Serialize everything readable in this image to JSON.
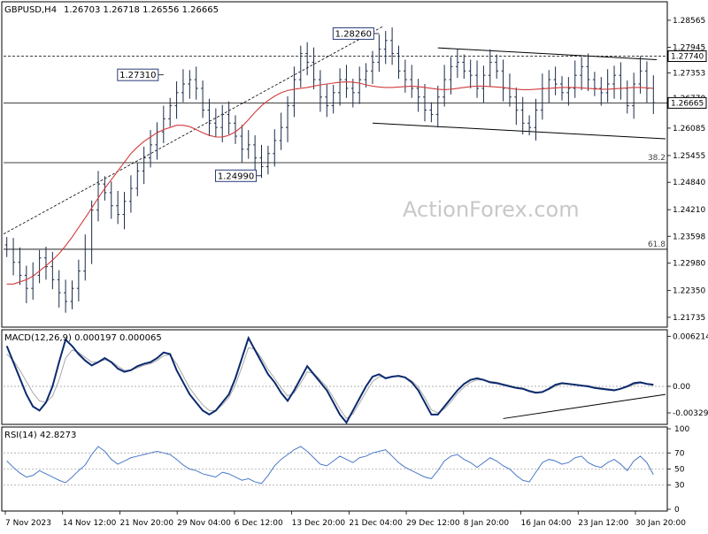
{
  "header": {
    "symbol": "GBPUSD,H4",
    "ohlc": "1.26703 1.26718 1.26556 1.26665"
  },
  "watermark": "ActionForex.com",
  "colors": {
    "bar": "#1a2b4a",
    "ma": "#d23c3c",
    "macd": "#0b2a6e",
    "signal": "#a8a8a8",
    "rsi": "#4a78c8",
    "grid": "#c8c8c8",
    "line": "#000000"
  },
  "chart_data": [
    {
      "type": "ohlc",
      "title": "GBPUSD,H4",
      "ylim": [
        1.2155,
        1.2895
      ],
      "y_ticks": [
        "1.28565",
        "1.27945",
        "1.27353",
        "1.26770",
        "1.26085",
        "1.25455",
        "1.24840",
        "1.24210",
        "1.23598",
        "1.22980",
        "1.22350",
        "1.21735"
      ],
      "x_ticks": [
        "7 Nov 2023",
        "14 Nov 12:00",
        "21 Nov 20:00",
        "29 Nov 04:00",
        "6 Dec 12:00",
        "13 Dec 20:00",
        "21 Dec 04:00",
        "29 Dec 12:00",
        "8 Jan 20:00",
        "16 Jan 04:00",
        "23 Jan 12:00",
        "30 Jan 20:00"
      ],
      "closes": [
        1.233,
        1.23,
        1.227,
        1.224,
        1.227,
        1.231,
        1.229,
        1.226,
        1.223,
        1.221,
        1.224,
        1.228,
        1.233,
        1.242,
        1.248,
        1.246,
        1.243,
        1.241,
        1.244,
        1.247,
        1.251,
        1.254,
        1.257,
        1.26,
        1.263,
        1.266,
        1.269,
        1.271,
        1.272,
        1.27,
        1.265,
        1.262,
        1.261,
        1.264,
        1.262,
        1.259,
        1.256,
        1.257,
        1.254,
        1.252,
        1.255,
        1.258,
        1.261,
        1.266,
        1.272,
        1.278,
        1.276,
        1.272,
        1.268,
        1.266,
        1.269,
        1.272,
        1.27,
        1.269,
        1.272,
        1.274,
        1.276,
        1.279,
        1.281,
        1.278,
        1.274,
        1.272,
        1.27,
        1.268,
        1.265,
        1.264,
        1.268,
        1.272,
        1.275,
        1.276,
        1.274,
        1.273,
        1.27,
        1.273,
        1.276,
        1.274,
        1.27,
        1.268,
        1.265,
        1.262,
        1.261,
        1.265,
        1.27,
        1.272,
        1.271,
        1.269,
        1.27,
        1.273,
        1.275,
        1.272,
        1.27,
        1.269,
        1.271,
        1.273,
        1.27,
        1.266,
        1.271,
        1.274,
        1.27,
        1.2667
      ],
      "ma_values": [
        1.225,
        1.225,
        1.2255,
        1.226,
        1.2268,
        1.228,
        1.2292,
        1.2305,
        1.232,
        1.2338,
        1.2358,
        1.238,
        1.2402,
        1.2425,
        1.2448,
        1.247,
        1.249,
        1.251,
        1.253,
        1.255,
        1.2565,
        1.2578,
        1.2588,
        1.2598,
        1.2605,
        1.261,
        1.2615,
        1.2615,
        1.2612,
        1.2605,
        1.2598,
        1.2592,
        1.2588,
        1.2588,
        1.2592,
        1.26,
        1.2612,
        1.2628,
        1.2645,
        1.266,
        1.2672,
        1.2682,
        1.269,
        1.2695,
        1.2698,
        1.27,
        1.2702,
        1.2705,
        1.2708,
        1.271,
        1.2712,
        1.2714,
        1.2715,
        1.2714,
        1.2712,
        1.2708,
        1.2705,
        1.2703,
        1.2702,
        1.2702,
        1.2703,
        1.2704,
        1.2705,
        1.2704,
        1.2702,
        1.27,
        1.2698,
        1.2697,
        1.2698,
        1.27,
        1.2702,
        1.2704,
        1.2705,
        1.2705,
        1.2704,
        1.2703,
        1.2702,
        1.27,
        1.2698,
        1.2697,
        1.2697,
        1.2698,
        1.2699,
        1.27,
        1.2701,
        1.2702,
        1.2702,
        1.2702,
        1.2701,
        1.27,
        1.2699,
        1.2698,
        1.2698,
        1.2699,
        1.27,
        1.2701,
        1.2702,
        1.2702,
        1.2701,
        1.27
      ],
      "levels": [
        {
          "value": 1.2774,
          "label": "1.27740",
          "style": "dashed"
        },
        {
          "value": 1.26665,
          "label": "1.26665",
          "style": "solid"
        },
        {
          "value": 1.2529,
          "label": "38.2",
          "style": "solid"
        },
        {
          "value": 1.233,
          "label": "61.8",
          "style": "solid"
        }
      ],
      "callouts": [
        {
          "label": "1.28260",
          "value": 1.2826,
          "index": 57
        },
        {
          "label": "1.27310",
          "value": 1.2731,
          "index": 24
        },
        {
          "label": "1.24990",
          "value": 1.2499,
          "index": 39
        }
      ]
    },
    {
      "type": "line",
      "title": "MACD(12,26,9) 0.000197 0.000065",
      "ylim": [
        -0.0045,
        0.0068
      ],
      "y_ticks": [
        "0.006214",
        "0.00",
        "-0.003292"
      ],
      "x_ticks": [
        "7 Nov 2023",
        "14 Nov 12:00",
        "21 Nov 20:00",
        "29 Nov 04:00",
        "6 Dec 12:00",
        "13 Dec 20:00",
        "21 Dec 04:00",
        "29 Dec 12:00",
        "8 Jan 20:00",
        "16 Jan 04:00",
        "23 Jan 12:00",
        "30 Jan 20:00"
      ],
      "series": [
        {
          "name": "",
          "values": [
            0.005,
            0.003,
            0.001,
            -0.001,
            -0.0025,
            -0.003,
            -0.002,
            0.0,
            0.003,
            0.0058,
            0.005,
            0.004,
            0.0032,
            0.0026,
            0.003,
            0.0035,
            0.003,
            0.0022,
            0.0018,
            0.002,
            0.0025,
            0.0028,
            0.003,
            0.0035,
            0.0042,
            0.004,
            0.002,
            0.0005,
            -0.001,
            -0.002,
            -0.003,
            -0.0035,
            -0.003,
            -0.002,
            -0.001,
            0.001,
            0.0035,
            0.006,
            0.0045,
            0.003,
            0.0015,
            0.0005,
            -0.0008,
            -0.0018,
            -0.0005,
            0.001,
            0.0025,
            0.0015,
            0.0005,
            -0.0005,
            -0.002,
            -0.0035,
            -0.0045,
            -0.003,
            -0.0015,
            0.0,
            0.0012,
            0.0015,
            0.001,
            0.0012,
            0.0013,
            0.0011,
            0.0005,
            -0.0005,
            -0.002,
            -0.0035,
            -0.0035,
            -0.0025,
            -0.0015,
            -0.0005,
            0.0003,
            0.0008,
            0.001,
            0.0008,
            0.0005,
            0.0004,
            0.0002,
            0.0,
            -0.0002,
            -0.0003,
            -0.0006,
            -0.0008,
            -0.0007,
            -0.0003,
            0.0002,
            0.0004,
            0.0003,
            0.0002,
            0.0001,
            0.0,
            -0.0002,
            -0.0003,
            -0.0004,
            -0.0005,
            -0.0003,
            0.0,
            0.0004,
            0.0005,
            0.0003,
            0.0002
          ]
        },
        {
          "name": "",
          "values": [
            0.004,
            0.0032,
            0.002,
            0.0006,
            -0.0008,
            -0.0018,
            -0.002,
            -0.0012,
            0.0008,
            0.0035,
            0.0045,
            0.0042,
            0.0036,
            0.003,
            0.003,
            0.0033,
            0.0031,
            0.0025,
            0.002,
            0.002,
            0.0023,
            0.0026,
            0.0028,
            0.0032,
            0.0038,
            0.0039,
            0.0028,
            0.0013,
            -0.0002,
            -0.0013,
            -0.0023,
            -0.003,
            -0.003,
            -0.0023,
            -0.0014,
            0.0002,
            0.0024,
            0.0048,
            0.0046,
            0.0035,
            0.0021,
            0.001,
            -0.0002,
            -0.0012,
            -0.0008,
            0.0004,
            0.0018,
            0.0016,
            0.0008,
            -0.0001,
            -0.0014,
            -0.0028,
            -0.004,
            -0.0034,
            -0.0021,
            -0.0007,
            0.0006,
            0.0012,
            0.0011,
            0.0012,
            0.0012,
            0.0011,
            0.0007,
            -0.0001,
            -0.0014,
            -0.0029,
            -0.0033,
            -0.0028,
            -0.0019,
            -0.0009,
            -0.0001,
            0.0005,
            0.0008,
            0.0008,
            0.0006,
            0.0005,
            0.0003,
            0.0001,
            -0.0001,
            -0.0002,
            -0.0005,
            -0.0007,
            -0.0007,
            -0.0004,
            0.0,
            0.0003,
            0.0003,
            0.0002,
            0.0001,
            0.0001,
            -0.0001,
            -0.0002,
            -0.0003,
            -0.0004,
            -0.0003,
            -0.0001,
            0.0002,
            0.0004,
            0.0003,
            0.0001
          ]
        }
      ]
    },
    {
      "type": "line",
      "title": "RSI(14) 42.8273",
      "ylim": [
        0,
        100
      ],
      "y_ticks": [
        "100",
        "70",
        "50",
        "30",
        "0"
      ],
      "x_ticks": [
        "7 Nov 2023",
        "14 Nov 12:00",
        "21 Nov 20:00",
        "29 Nov 04:00",
        "6 Dec 12:00",
        "13 Dec 20:00",
        "21 Dec 04:00",
        "29 Dec 12:00",
        "8 Jan 20:00",
        "16 Jan 04:00",
        "23 Jan 12:00",
        "30 Jan 20:00"
      ],
      "series": [
        {
          "name": "",
          "values": [
            60,
            52,
            45,
            40,
            42,
            48,
            44,
            40,
            36,
            33,
            40,
            48,
            55,
            68,
            78,
            72,
            62,
            56,
            60,
            64,
            66,
            68,
            70,
            72,
            70,
            68,
            62,
            55,
            50,
            48,
            44,
            42,
            40,
            46,
            44,
            40,
            36,
            38,
            34,
            32,
            42,
            54,
            62,
            68,
            74,
            78,
            72,
            64,
            56,
            54,
            60,
            66,
            62,
            58,
            64,
            66,
            70,
            72,
            74,
            66,
            58,
            52,
            48,
            44,
            40,
            38,
            48,
            60,
            66,
            68,
            62,
            58,
            52,
            58,
            64,
            60,
            54,
            50,
            42,
            36,
            34,
            46,
            58,
            62,
            60,
            56,
            58,
            64,
            66,
            58,
            54,
            52,
            58,
            62,
            56,
            48,
            60,
            66,
            58,
            43
          ]
        }
      ]
    }
  ]
}
